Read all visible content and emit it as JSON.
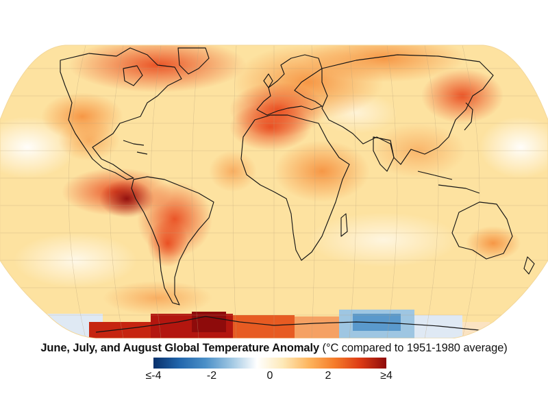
{
  "title_bold": "June, July, and August Global Temperature Anomaly",
  "title_rest": " (°C compared to 1951-1980 average)",
  "colorbar": {
    "ticks": [
      "≤-4",
      "-2",
      "0",
      "2",
      "≥4"
    ],
    "tick_values": [
      -4,
      -2,
      0,
      2,
      4
    ],
    "range": [
      -4,
      4
    ],
    "colors": [
      "#08306b",
      "#2166ac",
      "#4a8fc7",
      "#9ec6e2",
      "#ffffff",
      "#fde9b8",
      "#fdb55e",
      "#f57c2a",
      "#dc3a14",
      "#8e0b0b"
    ]
  },
  "map": {
    "projection": "Robinson",
    "graticule": true,
    "description_colors": {
      "ocean_base": "#fde7a8",
      "land_line": "#141414"
    }
  }
}
